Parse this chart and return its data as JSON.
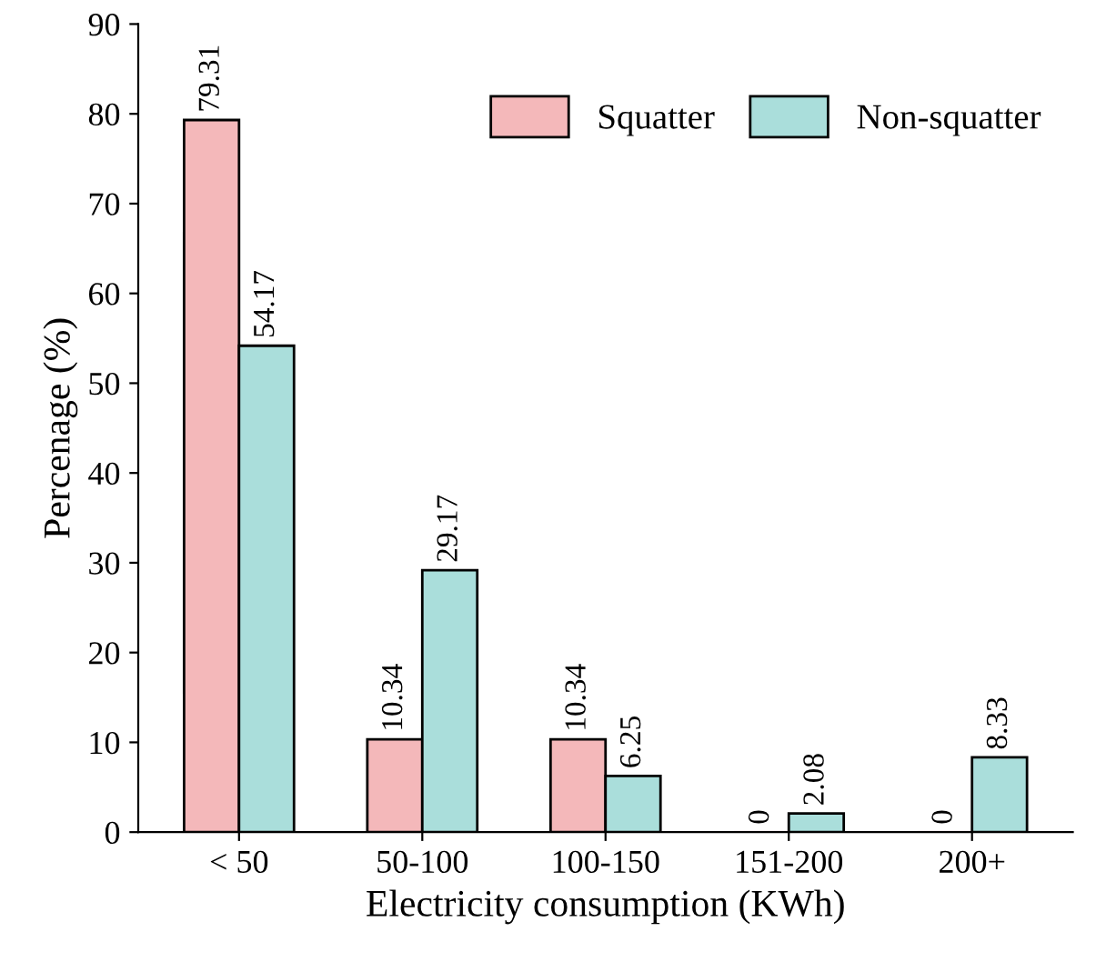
{
  "chart_data": {
    "type": "bar",
    "xlabel": "Electricity consumption (KWh)",
    "ylabel": "Percenage (%)",
    "categories": [
      "< 50",
      "50-100",
      "100-150",
      "151-200",
      "200+"
    ],
    "series": [
      {
        "name": "Squatter",
        "color": "#f4b8ba",
        "values": [
          79.31,
          10.34,
          10.34,
          0,
          0
        ]
      },
      {
        "name": "Non-squatter",
        "color": "#aadedb",
        "values": [
          54.17,
          29.17,
          6.25,
          2.08,
          8.33
        ]
      }
    ],
    "ylim": [
      0,
      90
    ],
    "yticks": [
      0,
      10,
      20,
      30,
      40,
      50,
      60,
      70,
      80,
      90
    ],
    "data_labels": true,
    "legend": "top right",
    "grid": false
  }
}
